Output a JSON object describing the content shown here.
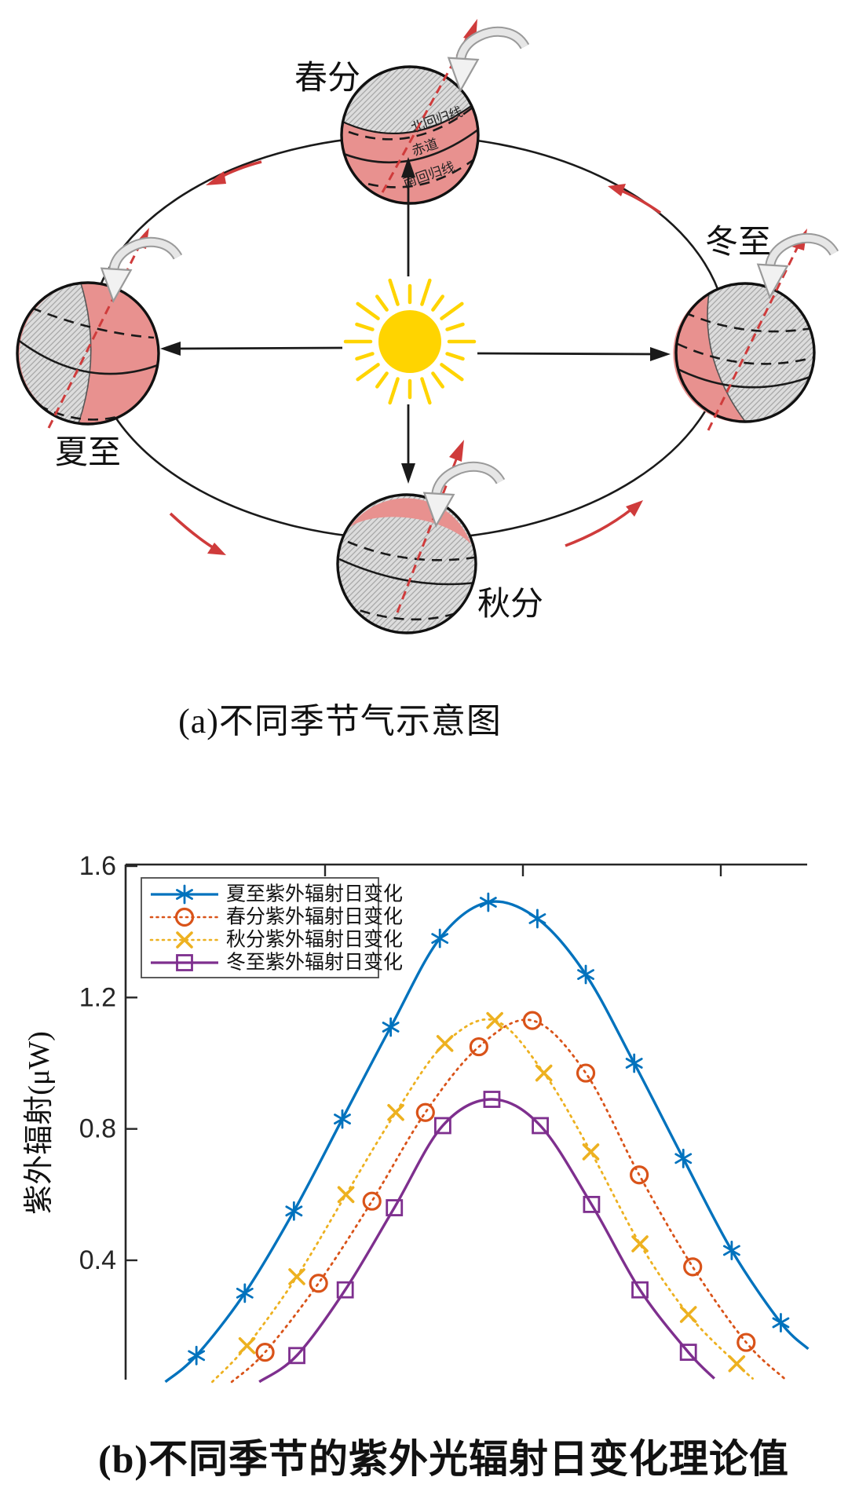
{
  "panel_a": {
    "caption": "(a)不同季节气示意图",
    "sun": {
      "name": "sun",
      "color": "#FFD400"
    },
    "globes": [
      {
        "id": "spring",
        "label": "春分"
      },
      {
        "id": "winter",
        "label": "冬至"
      },
      {
        "id": "summer",
        "label": "夏至"
      },
      {
        "id": "autumn",
        "label": "秋分"
      }
    ],
    "latitude_labels": {
      "tropic_of_cancer": "北回归线",
      "equator": "赤道",
      "tropic_of_capricorn": "南回归线"
    },
    "colors": {
      "day_side_pink": "#E8918F",
      "night_side_gray": "#DCDCDC",
      "orbit_line": "#1A1A1A",
      "direction_arrow_red": "#CF3B3B"
    }
  },
  "panel_b": {
    "caption": "(b)不同季节的紫外光辐射日变化理论值"
  },
  "chart_data": {
    "type": "line",
    "title": "",
    "xlabel": "",
    "ylabel": "紫外辐射(μW)",
    "ylim": [
      0,
      1.6
    ],
    "yticks": [
      1.6,
      1.2,
      0.8,
      0.4
    ],
    "ytick_labels": [
      "1.6",
      "1.2",
      "0.8",
      "0.4"
    ],
    "x_axis_note": "x tick labels cropped out of screenshot; x given as fraction of visible plot width",
    "grid": false,
    "legend_position": "top-left",
    "series": [
      {
        "name": "夏至紫外辐射日变化",
        "color": "#0072BD",
        "line_style": "solid",
        "marker": "asterisk",
        "peak_uW": 1.49,
        "points": [
          [
            0.055,
            0.03
          ],
          [
            0.098,
            0.11
          ],
          [
            0.165,
            0.3
          ],
          [
            0.233,
            0.55
          ],
          [
            0.3,
            0.83
          ],
          [
            0.367,
            1.11
          ],
          [
            0.435,
            1.38
          ],
          [
            0.502,
            1.49
          ],
          [
            0.57,
            1.44
          ],
          [
            0.637,
            1.27
          ],
          [
            0.704,
            1.0
          ],
          [
            0.772,
            0.71
          ],
          [
            0.839,
            0.43
          ],
          [
            0.907,
            0.21
          ],
          [
            0.945,
            0.13
          ]
        ]
      },
      {
        "name": "春分紫外辐射日变化",
        "color": "#D95319",
        "line_style": "dotted",
        "marker": "circle",
        "peak_uW": 1.13,
        "points": [
          [
            0.147,
            0.03
          ],
          [
            0.193,
            0.12
          ],
          [
            0.267,
            0.33
          ],
          [
            0.341,
            0.58
          ],
          [
            0.415,
            0.85
          ],
          [
            0.489,
            1.05
          ],
          [
            0.563,
            1.13
          ],
          [
            0.637,
            0.97
          ],
          [
            0.711,
            0.66
          ],
          [
            0.785,
            0.38
          ],
          [
            0.859,
            0.15
          ],
          [
            0.912,
            0.04
          ]
        ]
      },
      {
        "name": "秋分紫外辐射日变化",
        "color": "#EDB120",
        "line_style": "dotted",
        "marker": "x",
        "peak_uW": 1.13,
        "points": [
          [
            0.12,
            0.03
          ],
          [
            0.168,
            0.14
          ],
          [
            0.237,
            0.35
          ],
          [
            0.305,
            0.6
          ],
          [
            0.374,
            0.85
          ],
          [
            0.442,
            1.06
          ],
          [
            0.511,
            1.13
          ],
          [
            0.579,
            0.97
          ],
          [
            0.644,
            0.73
          ],
          [
            0.712,
            0.45
          ],
          [
            0.779,
            0.235
          ],
          [
            0.846,
            0.085
          ],
          [
            0.868,
            0.04
          ]
        ]
      },
      {
        "name": "冬至紫外辐射日变化",
        "color": "#7E2F8E",
        "line_style": "solid",
        "marker": "square",
        "peak_uW": 0.89,
        "points": [
          [
            0.185,
            0.03
          ],
          [
            0.237,
            0.11
          ],
          [
            0.304,
            0.31
          ],
          [
            0.372,
            0.56
          ],
          [
            0.439,
            0.81
          ],
          [
            0.507,
            0.89
          ],
          [
            0.574,
            0.81
          ],
          [
            0.645,
            0.57
          ],
          [
            0.712,
            0.31
          ],
          [
            0.779,
            0.12
          ],
          [
            0.815,
            0.04
          ]
        ]
      }
    ]
  }
}
